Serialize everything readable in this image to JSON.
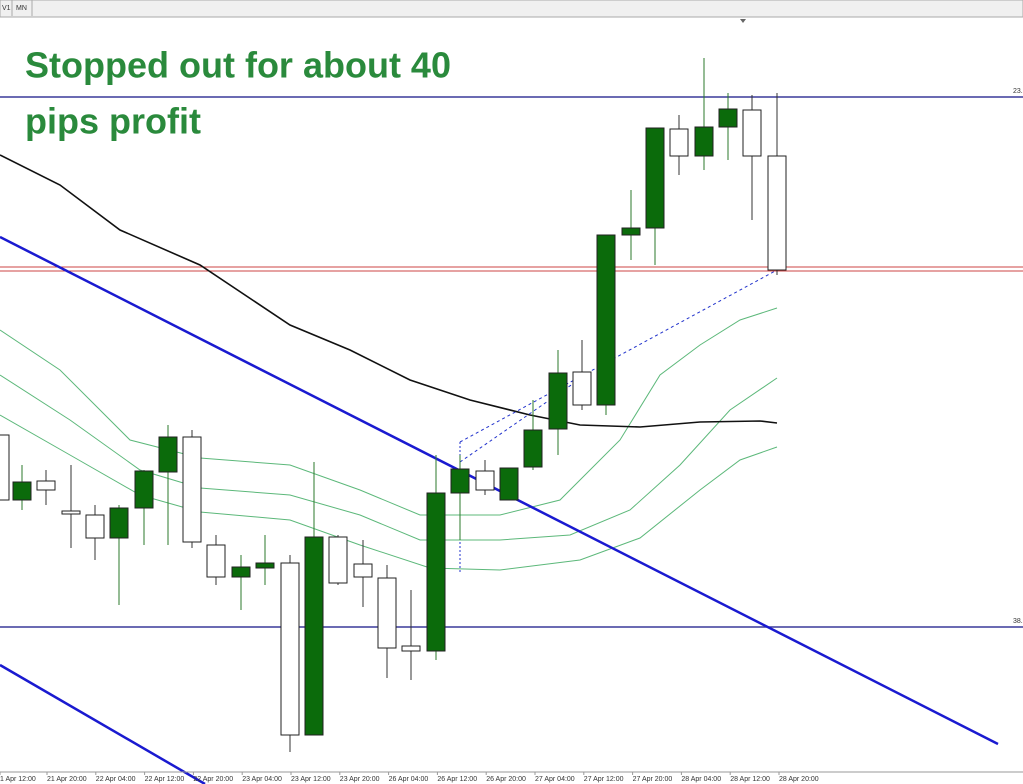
{
  "toolbar": {
    "tabs": [
      "V1",
      "MN"
    ]
  },
  "annotation": {
    "lines": [
      "Stopped out for about 40",
      "pips profit"
    ]
  },
  "level_labels": [
    "23.",
    "38."
  ],
  "time_axis": {
    "labels": [
      "1 Apr 12:00",
      "21 Apr 20:00",
      "22 Apr 04:00",
      "22 Apr 12:00",
      "22 Apr 20:00",
      "23 Apr 04:00",
      "23 Apr 12:00",
      "23 Apr 20:00",
      "26 Apr 04:00",
      "26 Apr 12:00",
      "26 Apr 20:00",
      "27 Apr 04:00",
      "27 Apr 12:00",
      "27 Apr 20:00",
      "28 Apr 04:00",
      "28 Apr 12:00",
      "28 Apr 20:00"
    ]
  }
}
